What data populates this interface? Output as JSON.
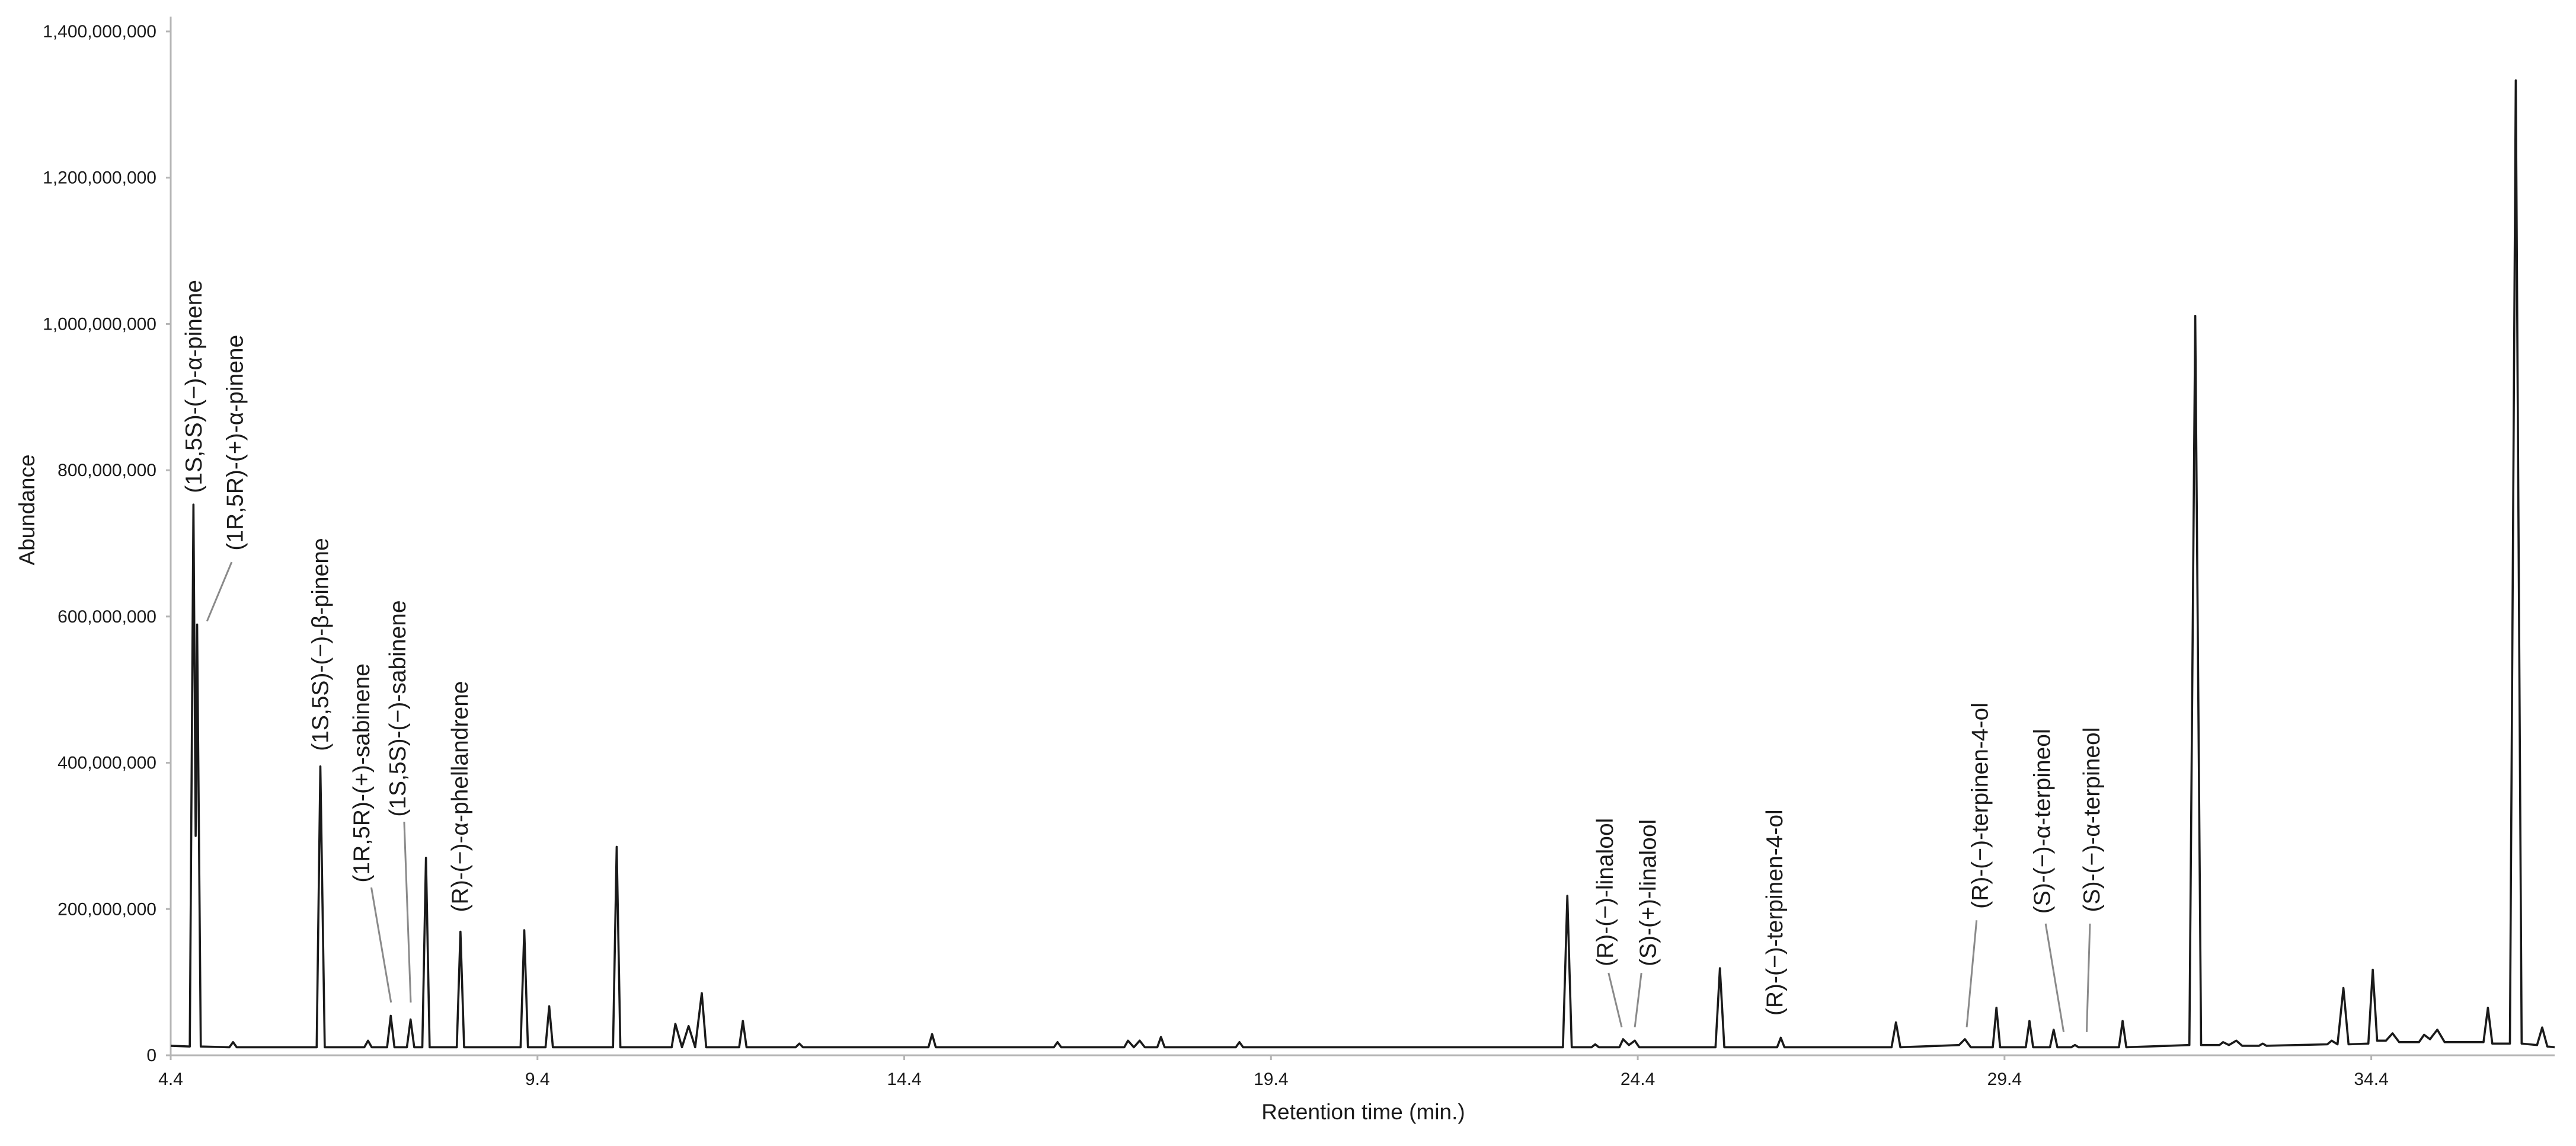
{
  "chart_data": {
    "type": "line",
    "x_label": "Retention time (min.)",
    "y_label": "Abundance",
    "color": "#1a1a1a",
    "xlim": [
      4.4,
      36.9
    ],
    "ylim": [
      0,
      1400000000
    ],
    "xticks": [
      4.4,
      9.4,
      14.4,
      19.4,
      24.4,
      29.4,
      34.4
    ],
    "yticks": [
      0,
      {
        "value": 200000000,
        "label": "200,000,000"
      },
      {
        "value": 400000000,
        "label": "400,000,000"
      },
      {
        "value": 600000000,
        "label": "600,000,000"
      },
      {
        "value": 800000000,
        "label": "800,000,000"
      },
      {
        "value": 1000000000,
        "label": "1,000,000,000"
      },
      {
        "value": 1200000000,
        "label": "1,200,000,000"
      },
      {
        "value": 1400000000,
        "label": "1,400,000,000"
      }
    ],
    "grid": false,
    "x": [
      4.4,
      4.66,
      4.71,
      4.74,
      4.76,
      4.81,
      5.2,
      5.25,
      5.3,
      6.39,
      6.44,
      6.5,
      7.04,
      7.09,
      7.14,
      7.35,
      7.4,
      7.45,
      7.62,
      7.67,
      7.72,
      7.83,
      7.88,
      7.93,
      8.3,
      8.35,
      8.4,
      9.17,
      9.22,
      9.27,
      9.51,
      9.56,
      9.61,
      10.43,
      10.48,
      10.53,
      11.23,
      11.28,
      11.37,
      11.46,
      11.55,
      11.64,
      11.7,
      12.15,
      12.2,
      12.25,
      12.92,
      12.97,
      13.02,
      14.73,
      14.78,
      14.83,
      16.44,
      16.49,
      16.54,
      17.4,
      17.45,
      17.53,
      17.61,
      17.68,
      17.85,
      17.9,
      17.95,
      18.92,
      18.97,
      19.02,
      23.38,
      23.44,
      23.5,
      23.77,
      23.82,
      23.87,
      24.15,
      24.2,
      24.28,
      24.36,
      24.42,
      25.46,
      25.52,
      25.58,
      26.3,
      26.35,
      26.4,
      27.86,
      27.92,
      27.98,
      28.78,
      28.86,
      28.94,
      29.24,
      29.29,
      29.34,
      29.69,
      29.74,
      29.79,
      30.02,
      30.07,
      30.12,
      30.31,
      30.36,
      30.41,
      30.96,
      31.01,
      31.06,
      31.92,
      32.0,
      32.08,
      32.33,
      32.38,
      32.46,
      32.56,
      32.64,
      32.87,
      32.92,
      32.97,
      33.8,
      33.86,
      33.94,
      34.02,
      34.09,
      34.36,
      34.42,
      34.48,
      34.6,
      34.69,
      34.78,
      35.05,
      35.12,
      35.2,
      35.3,
      35.4,
      35.93,
      35.99,
      36.05,
      36.29,
      36.37,
      36.45,
      36.66,
      36.73,
      36.8,
      36.9
    ],
    "values": [
      13000000,
      12000000,
      753000000,
      300000000,
      589000000,
      12000000,
      11000000,
      18000000,
      11000000,
      11000000,
      395000000,
      11000000,
      11000000,
      20000000,
      11000000,
      11000000,
      54000000,
      11000000,
      11000000,
      49000000,
      11000000,
      11000000,
      270000000,
      11000000,
      11000000,
      169000000,
      11000000,
      11000000,
      171000000,
      11000000,
      11000000,
      67000000,
      11000000,
      11000000,
      285000000,
      11000000,
      11000000,
      43000000,
      11000000,
      40000000,
      11000000,
      85000000,
      11000000,
      11000000,
      47000000,
      11000000,
      11000000,
      16000000,
      11000000,
      11000000,
      29000000,
      11000000,
      11000000,
      18000000,
      11000000,
      11000000,
      20000000,
      11000000,
      20000000,
      11000000,
      11000000,
      25000000,
      11000000,
      11000000,
      18000000,
      11000000,
      11000000,
      218000000,
      11000000,
      11000000,
      15000000,
      11000000,
      11000000,
      22000000,
      14000000,
      20000000,
      11000000,
      11000000,
      119000000,
      11000000,
      11000000,
      24000000,
      11000000,
      11000000,
      45000000,
      11000000,
      14000000,
      22000000,
      11000000,
      11000000,
      65000000,
      11000000,
      11000000,
      47000000,
      11000000,
      11000000,
      35000000,
      11000000,
      11000000,
      14000000,
      11000000,
      11000000,
      47000000,
      11000000,
      14000000,
      1011000000,
      14000000,
      14000000,
      18000000,
      14000000,
      20000000,
      13000000,
      13000000,
      16000000,
      13000000,
      15000000,
      20000000,
      15000000,
      92000000,
      15000000,
      16000000,
      117000000,
      20000000,
      20000000,
      30000000,
      18000000,
      18000000,
      28000000,
      22000000,
      35000000,
      18000000,
      18000000,
      65000000,
      16000000,
      16000000,
      1333000000,
      16000000,
      14000000,
      38000000,
      12000000,
      11000000
    ],
    "annotations": [
      "(1S,5S)-(−)-α-pinene",
      "(1R,5R)-(+)-α-pinene",
      "(1S,5S)-(−)-β-pinene",
      "(1R,5R)-(+)-sabinene",
      "(1S,5S)-(−)-sabinene",
      "(R)-(−)-α-phellandrene",
      "(R)-(−)-linalool",
      "(S)-(+)-linalool",
      "(R)-(−)-terpinen-4-ol",
      "(R)-(−)-terpinen-4-ol",
      "(S)-(−)-α-terpineol",
      "(S)-(−)-α-terpineol"
    ]
  }
}
